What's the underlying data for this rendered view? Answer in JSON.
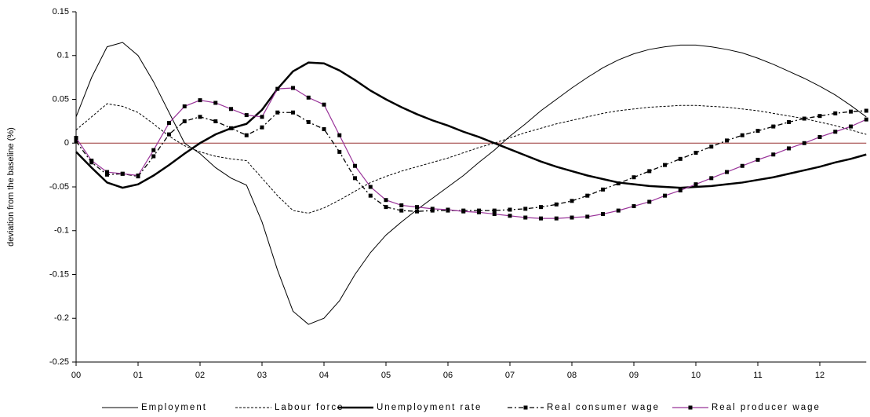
{
  "chart_data": {
    "type": "line",
    "y_label": "deviation from the baseline (%)",
    "categories": [
      "00",
      null,
      null,
      null,
      "01",
      null,
      null,
      null,
      "02",
      null,
      null,
      null,
      "03",
      null,
      null,
      null,
      "04",
      null,
      null,
      null,
      "05",
      null,
      null,
      null,
      "06",
      null,
      null,
      null,
      "07",
      null,
      null,
      null,
      "08",
      null,
      null,
      null,
      "09",
      null,
      null,
      null,
      "10",
      null,
      null,
      null,
      "11",
      null,
      null,
      null,
      "12",
      null,
      null,
      null
    ],
    "ylim": [
      -0.25,
      0.15
    ],
    "yticks": [
      -0.25,
      -0.2,
      -0.15,
      -0.1,
      -0.05,
      0,
      0.05,
      0.1,
      0.15
    ],
    "grid": false,
    "zero_line_color": "#993333",
    "legend": "bottom",
    "series": [
      {
        "name": "Employment",
        "color": "#000000",
        "width": 1,
        "dash": "none",
        "marker": false,
        "values": [
          0.03,
          0.075,
          0.11,
          0.115,
          0.1,
          0.07,
          0.035,
          0.0,
          -0.012,
          -0.028,
          -0.04,
          -0.048,
          -0.09,
          -0.145,
          -0.192,
          -0.207,
          -0.2,
          -0.18,
          -0.15,
          -0.125,
          -0.105,
          -0.09,
          -0.076,
          -0.063,
          -0.05,
          -0.037,
          -0.022,
          -0.008,
          0.008,
          0.022,
          0.037,
          0.05,
          0.063,
          0.075,
          0.086,
          0.095,
          0.102,
          0.107,
          0.11,
          0.112,
          0.112,
          0.11,
          0.107,
          0.103,
          0.097,
          0.09,
          0.082,
          0.074,
          0.065,
          0.055,
          0.043,
          0.03
        ]
      },
      {
        "name": "Labour force",
        "color": "#000000",
        "width": 1,
        "dash": "3,2",
        "marker": false,
        "values": [
          0.015,
          0.03,
          0.045,
          0.042,
          0.035,
          0.022,
          0.008,
          -0.003,
          -0.01,
          -0.015,
          -0.018,
          -0.02,
          -0.04,
          -0.06,
          -0.077,
          -0.08,
          -0.074,
          -0.065,
          -0.055,
          -0.045,
          -0.038,
          -0.032,
          -0.027,
          -0.022,
          -0.017,
          -0.011,
          -0.005,
          0.0,
          0.006,
          0.012,
          0.017,
          0.022,
          0.026,
          0.03,
          0.034,
          0.037,
          0.039,
          0.041,
          0.042,
          0.043,
          0.043,
          0.042,
          0.041,
          0.039,
          0.037,
          0.034,
          0.031,
          0.028,
          0.024,
          0.02,
          0.015,
          0.01
        ]
      },
      {
        "name": "Unemployment rate",
        "color": "#000000",
        "width": 2.5,
        "dash": "none",
        "marker": false,
        "values": [
          -0.01,
          -0.028,
          -0.045,
          -0.051,
          -0.047,
          -0.037,
          -0.025,
          -0.012,
          0.0,
          0.01,
          0.017,
          0.022,
          0.038,
          0.062,
          0.082,
          0.092,
          0.091,
          0.083,
          0.072,
          0.06,
          0.05,
          0.041,
          0.033,
          0.026,
          0.02,
          0.013,
          0.007,
          0.0,
          -0.007,
          -0.014,
          -0.021,
          -0.027,
          -0.032,
          -0.037,
          -0.041,
          -0.045,
          -0.047,
          -0.049,
          -0.05,
          -0.051,
          -0.05,
          -0.049,
          -0.047,
          -0.045,
          -0.042,
          -0.039,
          -0.035,
          -0.031,
          -0.027,
          -0.022,
          -0.018,
          -0.013
        ]
      },
      {
        "name": "Real consumer wage",
        "color": "#000000",
        "width": 1.3,
        "dash": "6,3,2,3",
        "marker": true,
        "values": [
          0.002,
          -0.022,
          -0.036,
          -0.035,
          -0.038,
          -0.015,
          0.01,
          0.025,
          0.03,
          0.025,
          0.017,
          0.009,
          0.018,
          0.035,
          0.035,
          0.024,
          0.016,
          -0.01,
          -0.04,
          -0.06,
          -0.073,
          -0.077,
          -0.078,
          -0.077,
          -0.077,
          -0.077,
          -0.077,
          -0.077,
          -0.076,
          -0.075,
          -0.073,
          -0.07,
          -0.066,
          -0.06,
          -0.053,
          -0.046,
          -0.039,
          -0.032,
          -0.025,
          -0.018,
          -0.011,
          -0.004,
          0.003,
          0.009,
          0.014,
          0.019,
          0.024,
          0.028,
          0.031,
          0.034,
          0.036,
          0.037
        ]
      },
      {
        "name": "Real producer wage",
        "color": "#993399",
        "width": 1.2,
        "dash": "none",
        "marker": true,
        "values": [
          0.006,
          -0.02,
          -0.033,
          -0.035,
          -0.037,
          -0.008,
          0.023,
          0.042,
          0.049,
          0.046,
          0.039,
          0.032,
          0.03,
          0.062,
          0.063,
          0.052,
          0.044,
          0.009,
          -0.026,
          -0.05,
          -0.065,
          -0.071,
          -0.073,
          -0.075,
          -0.076,
          -0.078,
          -0.079,
          -0.081,
          -0.083,
          -0.085,
          -0.086,
          -0.086,
          -0.085,
          -0.084,
          -0.081,
          -0.077,
          -0.072,
          -0.067,
          -0.06,
          -0.054,
          -0.047,
          -0.04,
          -0.033,
          -0.026,
          -0.019,
          -0.013,
          -0.006,
          0.0,
          0.007,
          0.013,
          0.019,
          0.027
        ]
      }
    ]
  }
}
